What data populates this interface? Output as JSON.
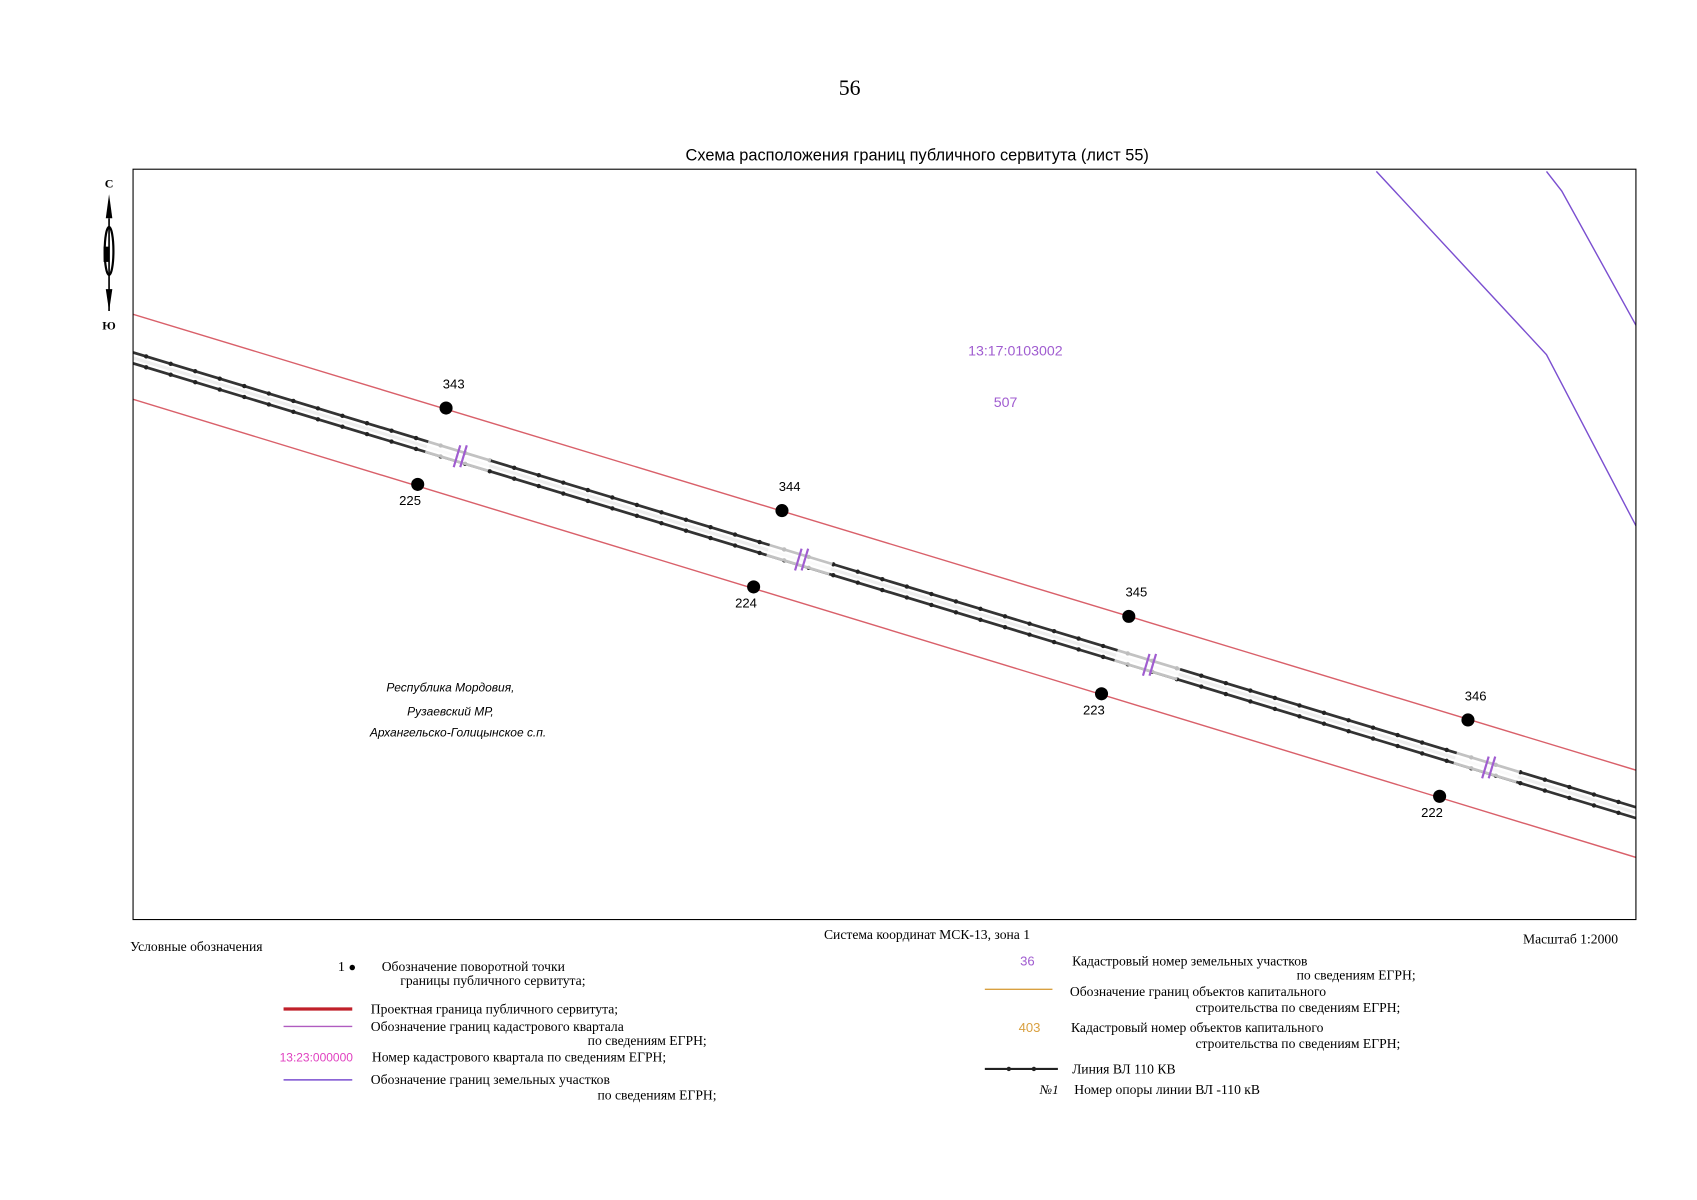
{
  "page_number": "56",
  "title": "Схема расположения границ публичного сервитута (лист 55)",
  "north_arrow": {
    "north": "С",
    "south": "Ю"
  },
  "map": {
    "quarter_number": "13:17:0103002",
    "parcel_number": "507",
    "region": [
      "Республика Мордовия,",
      "Рузаевский МР,",
      "Архангельско-Голицынское с.п."
    ],
    "points": [
      "343",
      "225",
      "344",
      "224",
      "345",
      "223",
      "346",
      "222"
    ]
  },
  "coordinate_system": "Система координат МСК-13, зона 1",
  "scale": "Масштаб 1:2000",
  "legend": {
    "title": "Условные обозначения",
    "items": [
      {
        "symbol": "1",
        "lines": [
          "Обозначение поворотной точки",
          "границы публичного сервитута;"
        ]
      },
      {
        "lines": [
          "Проектная граница публичного сервитута;"
        ]
      },
      {
        "lines": [
          "Обозначение границ кадастрового квартала",
          "по сведениям ЕГРН;"
        ]
      },
      {
        "symbol": "13:23:000000",
        "lines": [
          "Номер кадастрового квартала по сведениям ЕГРН;"
        ]
      },
      {
        "lines": [
          "Обозначение границ земельных участков",
          "по сведениям ЕГРН;"
        ]
      },
      {
        "symbol": "36",
        "lines": [
          "Кадастровый номер земельных участков",
          "по сведениям ЕГРН;"
        ]
      },
      {
        "lines": [
          "Обозначение границ объектов капитального",
          "строительства по сведениям ЕГРН;"
        ]
      },
      {
        "symbol": "403",
        "lines": [
          "Кадастровый номер объектов капитального",
          "строительства по сведениям ЕГРН;"
        ]
      },
      {
        "lines": [
          "Линия ВЛ 110 КВ"
        ]
      },
      {
        "symbol": "№1",
        "lines": [
          "Номер опоры линии ВЛ -110 кВ"
        ]
      }
    ]
  }
}
